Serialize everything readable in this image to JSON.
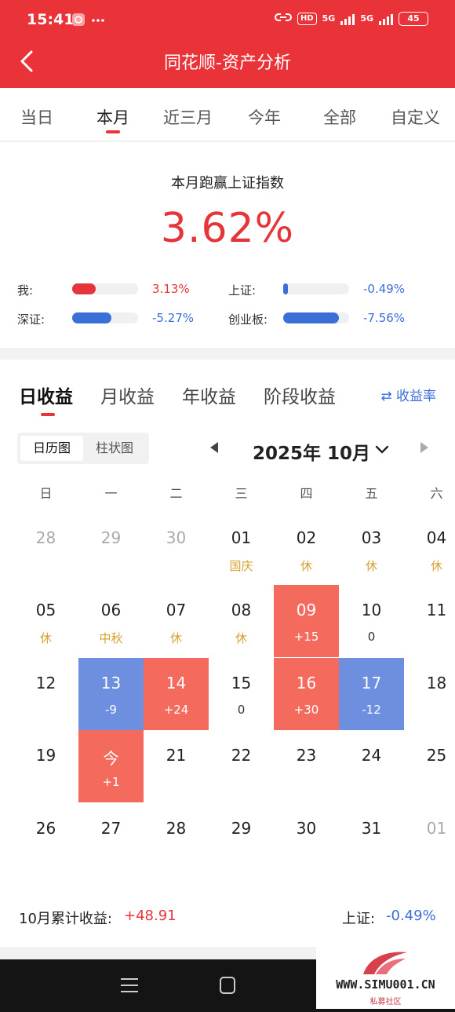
{
  "status_bar": {
    "time": "15:41",
    "icons": [
      "app-notification-icon",
      "more-dots-icon"
    ],
    "hd": "HD",
    "sig1": "5G",
    "sig2": "5G",
    "battery": "45"
  },
  "header": {
    "title": "同花顺-资产分析"
  },
  "period_tabs": [
    "当日",
    "本月",
    "近三月",
    "今年",
    "全部",
    "自定义"
  ],
  "period_tabs_active": "本月",
  "summary": {
    "title": "本月跑赢上证指数",
    "value": "3.62%",
    "comparisons": [
      {
        "label": "我:",
        "value": "3.13%",
        "fill_pct": 36,
        "color": "#e5353b"
      },
      {
        "label": "上证:",
        "value": "-0.49%",
        "fill_pct": 7,
        "color": "#3a6fd8"
      },
      {
        "label": "深证:",
        "value": "-5.27%",
        "fill_pct": 60,
        "color": "#3a6fd8"
      },
      {
        "label": "创业板:",
        "value": "-7.56%",
        "fill_pct": 85,
        "color": "#3a6fd8"
      }
    ]
  },
  "stat_tabs": [
    "日收益",
    "月收益",
    "年收益",
    "阶段收益"
  ],
  "stat_tabs_active": "日收益",
  "rate_toggle": "⇄ 收益率",
  "view_toggle": {
    "calendar": "日历图",
    "bar": "柱状图",
    "active": "日历图"
  },
  "month_label": "2025年 10月",
  "weekdays": [
    "日",
    "一",
    "二",
    "三",
    "四",
    "五",
    "六"
  ],
  "calendar": [
    [
      {
        "d": "28",
        "o": true
      },
      {
        "d": "29",
        "o": true
      },
      {
        "d": "30",
        "o": true
      },
      {
        "d": "01",
        "s": "国庆",
        "h": true
      },
      {
        "d": "02",
        "s": "休",
        "h": true
      },
      {
        "d": "03",
        "s": "休",
        "h": true
      },
      {
        "d": "04",
        "s": "休",
        "h": true
      }
    ],
    [
      {
        "d": "05",
        "s": "休",
        "h": true
      },
      {
        "d": "06",
        "s": "中秋",
        "h": true
      },
      {
        "d": "07",
        "s": "休",
        "h": true
      },
      {
        "d": "08",
        "s": "休",
        "h": true
      },
      {
        "d": "09",
        "s": "+15",
        "t": "up"
      },
      {
        "d": "10",
        "s": "0"
      },
      {
        "d": "11"
      }
    ],
    [
      {
        "d": "12"
      },
      {
        "d": "13",
        "s": "-9",
        "t": "down"
      },
      {
        "d": "14",
        "s": "+24",
        "t": "up"
      },
      {
        "d": "15",
        "s": "0"
      },
      {
        "d": "16",
        "s": "+30",
        "t": "up"
      },
      {
        "d": "17",
        "s": "-12",
        "t": "down"
      },
      {
        "d": "18"
      }
    ],
    [
      {
        "d": "19"
      },
      {
        "d": "今",
        "s": "+1",
        "t": "up"
      },
      {
        "d": "21"
      },
      {
        "d": "22"
      },
      {
        "d": "23"
      },
      {
        "d": "24"
      },
      {
        "d": "25"
      }
    ],
    [
      {
        "d": "26"
      },
      {
        "d": "27"
      },
      {
        "d": "28"
      },
      {
        "d": "29"
      },
      {
        "d": "30"
      },
      {
        "d": "31"
      },
      {
        "d": "01",
        "o": true
      }
    ]
  ],
  "totals": {
    "label": "10月累计收益:",
    "value": "+48.91",
    "sh_label": "上证:",
    "sh_value": "-0.49%"
  },
  "watermark": {
    "text": "WWW.SIMU001.CN",
    "sub": "私募社区"
  }
}
